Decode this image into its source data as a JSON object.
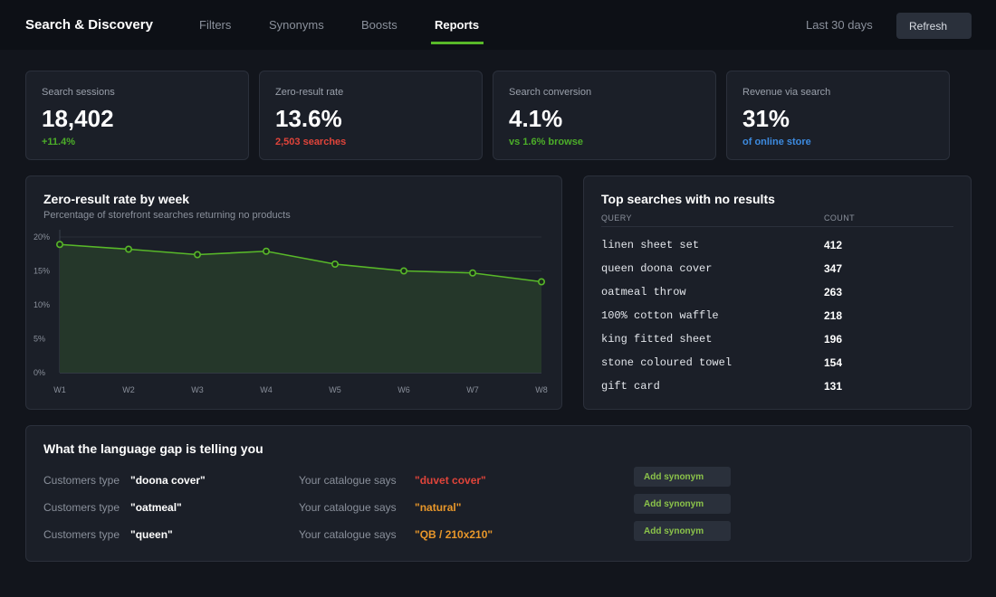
{
  "header": {
    "brand": "Search & Discovery",
    "tabs": [
      {
        "label": "Filters"
      },
      {
        "label": "Synonyms"
      },
      {
        "label": "Boosts"
      },
      {
        "label": "Reports"
      }
    ],
    "date_range": "Last 30 days",
    "refresh_label": "Refresh"
  },
  "kpis": [
    {
      "label": "Search sessions",
      "value": "18,402",
      "sub": "+11.4%",
      "sub_color": "#4cae29"
    },
    {
      "label": "Zero-result rate",
      "value": "13.6%",
      "sub": "2,503 searches",
      "sub_color": "#e0443a"
    },
    {
      "label": "Search conversion",
      "value": "4.1%",
      "sub": "vs 1.6% browse",
      "sub_color": "#4cae29"
    },
    {
      "label": "Revenue via search",
      "value": "31%",
      "sub": "of online store",
      "sub_color": "#3d8be0"
    }
  ],
  "zero_chart": {
    "title": "Zero-result rate by week",
    "subtitle": "Percentage of storefront searches returning no products"
  },
  "chart_data": {
    "type": "area",
    "title": "Zero-result rate by week",
    "subtitle": "Percentage of storefront searches returning no products",
    "categories": [
      "W1",
      "W2",
      "W3",
      "W4",
      "W5",
      "W6",
      "W7",
      "W8"
    ],
    "values": [
      18.9,
      18.2,
      17.4,
      17.9,
      16.0,
      15.0,
      14.7,
      13.4
    ],
    "y_ticks": [
      "0%",
      "5%",
      "10%",
      "15%",
      "20%"
    ],
    "ylim": [
      0,
      20
    ],
    "grid": true,
    "line_color": "#58b829",
    "fill_color": "#25372a"
  },
  "top_searches": {
    "title": "Top searches with no results",
    "col_query": "QUERY",
    "col_count": "COUNT",
    "rows": [
      {
        "query": "linen sheet set",
        "count": "412"
      },
      {
        "query": "queen doona cover",
        "count": "347"
      },
      {
        "query": "oatmeal throw",
        "count": "263"
      },
      {
        "query": "100% cotton waffle",
        "count": "218"
      },
      {
        "query": "king fitted sheet",
        "count": "196"
      },
      {
        "query": "stone coloured towel",
        "count": "154"
      },
      {
        "query": "gift card",
        "count": "131"
      }
    ]
  },
  "insights": {
    "title": "What the language gap is telling you",
    "rows": [
      {
        "customer_label": "Customers type",
        "customer_term": "\"doona cover\"",
        "catalogue_label": "Your catalogue says",
        "catalogue_term": "\"duvet cover\"",
        "catalogue_color": "#e0443a",
        "action": "Add synonym"
      },
      {
        "customer_label": "Customers type",
        "customer_term": "\"oatmeal\"",
        "catalogue_label": "Your catalogue says",
        "catalogue_term": "\"natural\"",
        "catalogue_color": "#e8972a",
        "action": "Add synonym"
      },
      {
        "customer_label": "Customers type",
        "customer_term": "\"queen\"",
        "catalogue_label": "Your catalogue says",
        "catalogue_term": "\"QB / 210x210\"",
        "catalogue_color": "#e8972a",
        "action": "Add synonym"
      }
    ]
  }
}
